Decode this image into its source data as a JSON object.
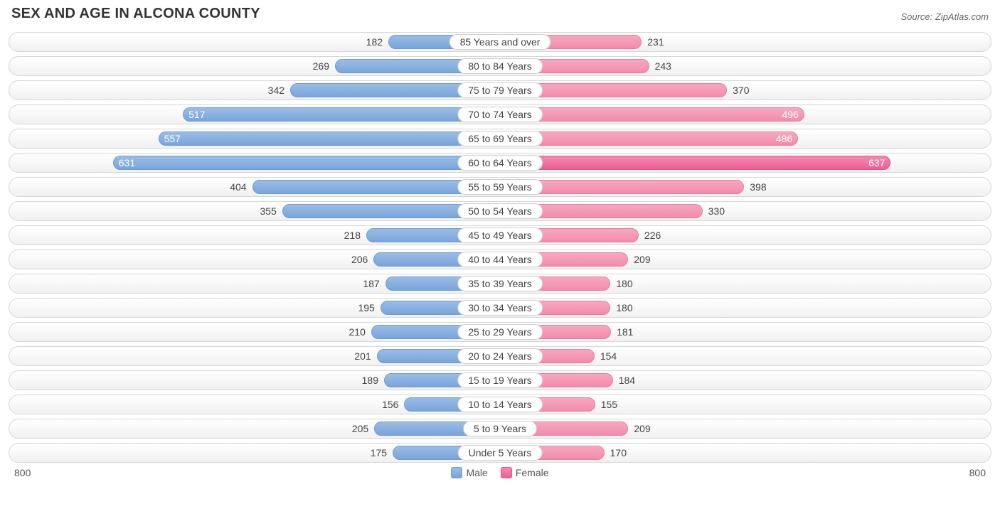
{
  "title": "SEX AND AGE IN ALCONA COUNTY",
  "source": "Source: ZipAtlas.com",
  "axis_max": 800,
  "axis_left_label": "800",
  "axis_right_label": "800",
  "legend": {
    "male": "Male",
    "female": "Female"
  },
  "colors": {
    "male_bar": "#78a5da",
    "female_bar": "#f28bac",
    "female_max_bar": "#ee5e94",
    "row_border": "#d6d6d6",
    "text": "#444444",
    "inside_text": "#ffffff"
  },
  "inside_threshold": 460,
  "rows": [
    {
      "label": "85 Years and over",
      "male": 182,
      "female": 231
    },
    {
      "label": "80 to 84 Years",
      "male": 269,
      "female": 243
    },
    {
      "label": "75 to 79 Years",
      "male": 342,
      "female": 370
    },
    {
      "label": "70 to 74 Years",
      "male": 517,
      "female": 496
    },
    {
      "label": "65 to 69 Years",
      "male": 557,
      "female": 486
    },
    {
      "label": "60 to 64 Years",
      "male": 631,
      "female": 637,
      "female_max": true
    },
    {
      "label": "55 to 59 Years",
      "male": 404,
      "female": 398
    },
    {
      "label": "50 to 54 Years",
      "male": 355,
      "female": 330
    },
    {
      "label": "45 to 49 Years",
      "male": 218,
      "female": 226
    },
    {
      "label": "40 to 44 Years",
      "male": 206,
      "female": 209
    },
    {
      "label": "35 to 39 Years",
      "male": 187,
      "female": 180
    },
    {
      "label": "30 to 34 Years",
      "male": 195,
      "female": 180
    },
    {
      "label": "25 to 29 Years",
      "male": 210,
      "female": 181
    },
    {
      "label": "20 to 24 Years",
      "male": 201,
      "female": 154
    },
    {
      "label": "15 to 19 Years",
      "male": 189,
      "female": 184
    },
    {
      "label": "10 to 14 Years",
      "male": 156,
      "female": 155
    },
    {
      "label": "5 to 9 Years",
      "male": 205,
      "female": 209
    },
    {
      "label": "Under 5 Years",
      "male": 175,
      "female": 170
    }
  ]
}
